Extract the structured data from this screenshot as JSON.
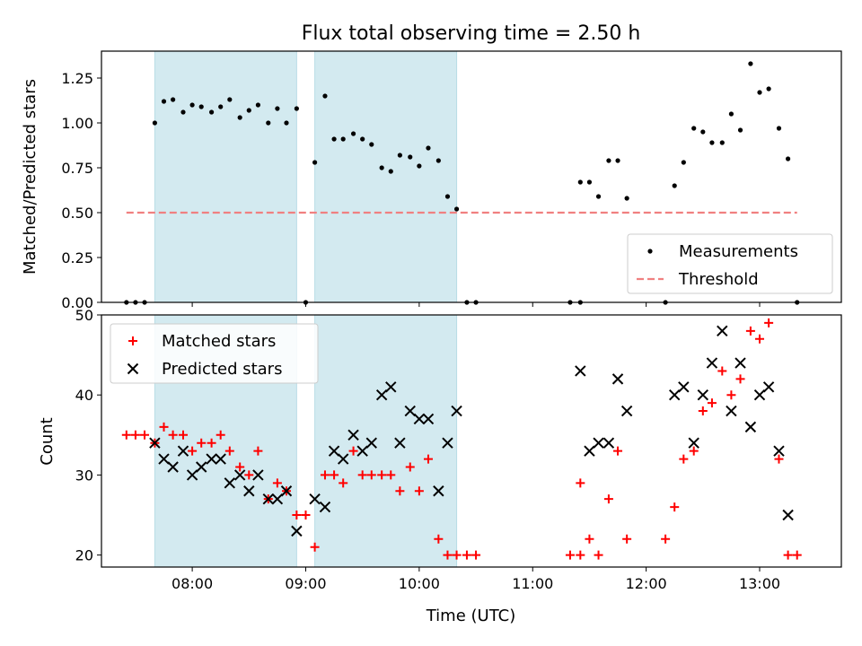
{
  "chart_data": {
    "title": "Flux total observing time = 2.50 h",
    "xlabel": "Time (UTC)",
    "x_ticks": [
      "08:00",
      "09:00",
      "10:00",
      "11:00",
      "12:00",
      "13:00"
    ],
    "x_tick_hours": [
      8,
      9,
      10,
      11,
      12,
      13
    ],
    "xlim_hours": [
      7.2,
      13.72
    ],
    "shaded_spans_hours": [
      [
        7.67,
        8.92
      ],
      [
        9.08,
        10.33
      ]
    ],
    "span_color": "#d3eaf0",
    "panels": [
      {
        "type": "scatter",
        "ylabel": "Matched/Predicted stars",
        "ylim": [
          0,
          1.4
        ],
        "y_ticks": [
          "0.00",
          "0.25",
          "0.50",
          "0.75",
          "1.00",
          "1.25"
        ],
        "legend_position": "lower-right",
        "series": [
          {
            "name": "Measurements",
            "marker": "dot",
            "color": "#000000",
            "points": [
              [
                7.42,
                0.0
              ],
              [
                7.5,
                0.0
              ],
              [
                7.58,
                0.0
              ],
              [
                7.67,
                1.0
              ],
              [
                7.75,
                1.12
              ],
              [
                7.83,
                1.13
              ],
              [
                7.92,
                1.06
              ],
              [
                8.0,
                1.1
              ],
              [
                8.08,
                1.09
              ],
              [
                8.17,
                1.06
              ],
              [
                8.25,
                1.09
              ],
              [
                8.33,
                1.13
              ],
              [
                8.42,
                1.03
              ],
              [
                8.5,
                1.07
              ],
              [
                8.58,
                1.1
              ],
              [
                8.67,
                1.0
              ],
              [
                8.75,
                1.08
              ],
              [
                8.83,
                1.0
              ],
              [
                8.92,
                1.08
              ],
              [
                9.0,
                0.0
              ],
              [
                9.08,
                0.78
              ],
              [
                9.17,
                1.15
              ],
              [
                9.25,
                0.91
              ],
              [
                9.33,
                0.91
              ],
              [
                9.42,
                0.94
              ],
              [
                9.5,
                0.91
              ],
              [
                9.58,
                0.88
              ],
              [
                9.67,
                0.75
              ],
              [
                9.75,
                0.73
              ],
              [
                9.83,
                0.82
              ],
              [
                9.92,
                0.81
              ],
              [
                10.0,
                0.76
              ],
              [
                10.08,
                0.86
              ],
              [
                10.17,
                0.79
              ],
              [
                10.25,
                0.59
              ],
              [
                10.33,
                0.52
              ],
              [
                10.42,
                0.0
              ],
              [
                10.5,
                0.0
              ],
              [
                11.33,
                0.0
              ],
              [
                11.42,
                0.0
              ],
              [
                11.42,
                0.67
              ],
              [
                11.5,
                0.67
              ],
              [
                11.58,
                0.59
              ],
              [
                11.67,
                0.79
              ],
              [
                11.75,
                0.79
              ],
              [
                11.83,
                0.58
              ],
              [
                12.17,
                0.0
              ],
              [
                12.25,
                0.65
              ],
              [
                12.33,
                0.78
              ],
              [
                12.42,
                0.97
              ],
              [
                12.5,
                0.95
              ],
              [
                12.58,
                0.89
              ],
              [
                12.67,
                0.89
              ],
              [
                12.75,
                1.05
              ],
              [
                12.83,
                0.96
              ],
              [
                12.92,
                1.33
              ],
              [
                13.0,
                1.17
              ],
              [
                13.08,
                1.19
              ],
              [
                13.17,
                0.97
              ],
              [
                13.25,
                0.8
              ],
              [
                13.33,
                0.0
              ]
            ]
          },
          {
            "name": "Threshold",
            "marker": "dashed-line",
            "color": "#f08080",
            "points": [
              [
                7.42,
                0.5
              ],
              [
                13.33,
                0.5
              ]
            ]
          }
        ]
      },
      {
        "type": "scatter",
        "ylabel": "Count",
        "ylim": [
          18.5,
          50
        ],
        "y_ticks": [
          "20",
          "30",
          "40",
          "50"
        ],
        "legend_position": "upper-left",
        "series": [
          {
            "name": "Matched stars",
            "marker": "plus",
            "color": "#ff0000",
            "points": [
              [
                7.42,
                35
              ],
              [
                7.5,
                35
              ],
              [
                7.58,
                35
              ],
              [
                7.67,
                34
              ],
              [
                7.75,
                36
              ],
              [
                7.83,
                35
              ],
              [
                7.92,
                35
              ],
              [
                8.0,
                33
              ],
              [
                8.08,
                34
              ],
              [
                8.17,
                34
              ],
              [
                8.25,
                35
              ],
              [
                8.33,
                33
              ],
              [
                8.42,
                31
              ],
              [
                8.5,
                30
              ],
              [
                8.58,
                33
              ],
              [
                8.67,
                27
              ],
              [
                8.75,
                29
              ],
              [
                8.83,
                28
              ],
              [
                8.92,
                25
              ],
              [
                9.0,
                25
              ],
              [
                9.08,
                21
              ],
              [
                9.17,
                30
              ],
              [
                9.25,
                30
              ],
              [
                9.33,
                29
              ],
              [
                9.42,
                33
              ],
              [
                9.5,
                30
              ],
              [
                9.58,
                30
              ],
              [
                9.67,
                30
              ],
              [
                9.75,
                30
              ],
              [
                9.83,
                28
              ],
              [
                9.92,
                31
              ],
              [
                10.0,
                28
              ],
              [
                10.08,
                32
              ],
              [
                10.17,
                22
              ],
              [
                10.25,
                20
              ],
              [
                10.33,
                20
              ],
              [
                10.42,
                20
              ],
              [
                10.5,
                20
              ],
              [
                11.33,
                20
              ],
              [
                11.42,
                20
              ],
              [
                11.42,
                29
              ],
              [
                11.5,
                22
              ],
              [
                11.58,
                20
              ],
              [
                11.67,
                27
              ],
              [
                11.75,
                33
              ],
              [
                11.83,
                22
              ],
              [
                12.17,
                22
              ],
              [
                12.25,
                26
              ],
              [
                12.33,
                32
              ],
              [
                12.42,
                33
              ],
              [
                12.5,
                38
              ],
              [
                12.58,
                39
              ],
              [
                12.67,
                43
              ],
              [
                12.75,
                40
              ],
              [
                12.83,
                42
              ],
              [
                12.92,
                48
              ],
              [
                13.0,
                47
              ],
              [
                13.08,
                49
              ],
              [
                13.17,
                32
              ],
              [
                13.25,
                20
              ],
              [
                13.33,
                20
              ]
            ]
          },
          {
            "name": "Predicted stars",
            "marker": "x",
            "color": "#000000",
            "points": [
              [
                7.67,
                34
              ],
              [
                7.75,
                32
              ],
              [
                7.83,
                31
              ],
              [
                7.92,
                33
              ],
              [
                8.0,
                30
              ],
              [
                8.08,
                31
              ],
              [
                8.17,
                32
              ],
              [
                8.25,
                32
              ],
              [
                8.33,
                29
              ],
              [
                8.42,
                30
              ],
              [
                8.5,
                28
              ],
              [
                8.58,
                30
              ],
              [
                8.67,
                27
              ],
              [
                8.75,
                27
              ],
              [
                8.83,
                28
              ],
              [
                8.92,
                23
              ],
              [
                9.08,
                27
              ],
              [
                9.17,
                26
              ],
              [
                9.25,
                33
              ],
              [
                9.33,
                32
              ],
              [
                9.42,
                35
              ],
              [
                9.5,
                33
              ],
              [
                9.58,
                34
              ],
              [
                9.67,
                40
              ],
              [
                9.75,
                41
              ],
              [
                9.83,
                34
              ],
              [
                9.92,
                38
              ],
              [
                10.0,
                37
              ],
              [
                10.08,
                37
              ],
              [
                10.17,
                28
              ],
              [
                10.25,
                34
              ],
              [
                10.33,
                38
              ],
              [
                11.42,
                43
              ],
              [
                11.5,
                33
              ],
              [
                11.58,
                34
              ],
              [
                11.67,
                34
              ],
              [
                11.75,
                42
              ],
              [
                11.83,
                38
              ],
              [
                12.25,
                40
              ],
              [
                12.33,
                41
              ],
              [
                12.42,
                34
              ],
              [
                12.5,
                40
              ],
              [
                12.58,
                44
              ],
              [
                12.67,
                48
              ],
              [
                12.75,
                38
              ],
              [
                12.83,
                44
              ],
              [
                12.92,
                36
              ],
              [
                13.0,
                40
              ],
              [
                13.08,
                41
              ],
              [
                13.17,
                33
              ],
              [
                13.25,
                25
              ]
            ]
          }
        ]
      }
    ]
  }
}
